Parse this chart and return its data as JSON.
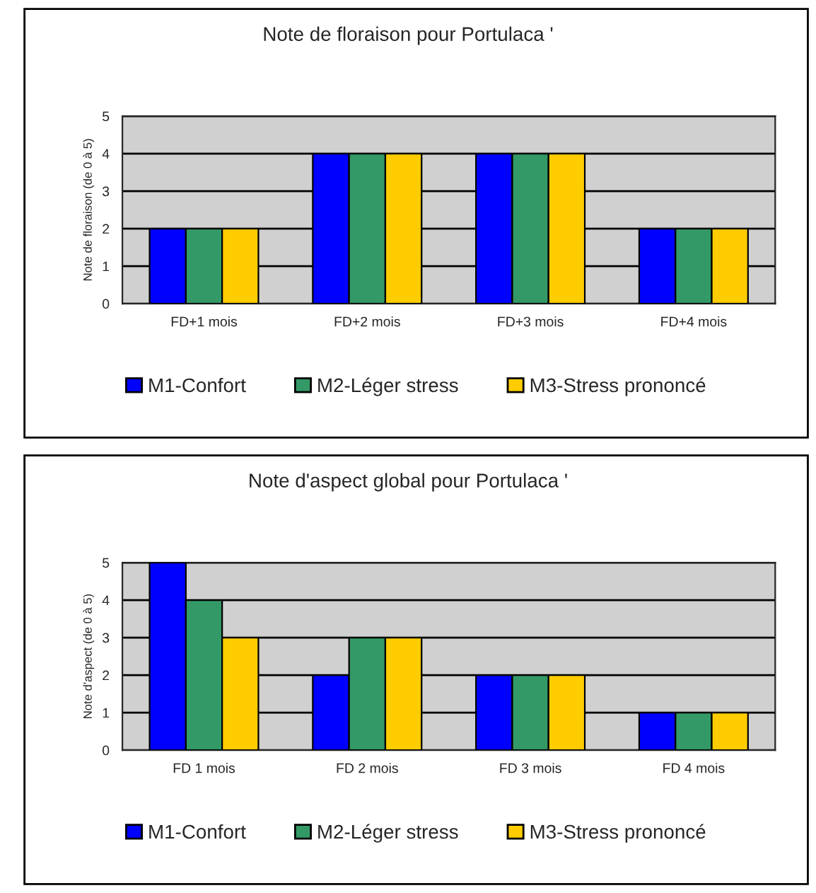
{
  "chart_data": [
    {
      "type": "bar",
      "title": "Note de floraison pour Portulaca '",
      "ylabel": "Note de floraison (de 0 à 5)",
      "categories": [
        "FD+1 mois",
        "FD+2 mois",
        "FD+3 mois",
        "FD+4 mois"
      ],
      "series": [
        {
          "name": "M1-Confort",
          "color": "#0000ff",
          "values": [
            2,
            4,
            4,
            2
          ]
        },
        {
          "name": "M2-Léger stress",
          "color": "#339966",
          "values": [
            2,
            4,
            4,
            2
          ]
        },
        {
          "name": "M3-Stress prononcé",
          "color": "#ffcc00",
          "values": [
            2,
            4,
            4,
            2
          ]
        }
      ],
      "ylim": [
        0,
        5
      ],
      "yticks": [
        0,
        1,
        2,
        3,
        4,
        5
      ],
      "grid": "y",
      "legend": "bottom"
    },
    {
      "type": "bar",
      "title": "Note d'aspect global pour Portulaca '",
      "ylabel": "Note d'aspect (de 0 à 5)",
      "categories": [
        "FD 1 mois",
        "FD 2 mois",
        "FD 3 mois",
        "FD 4 mois"
      ],
      "series": [
        {
          "name": "M1-Confort",
          "color": "#0000ff",
          "values": [
            5,
            2,
            2,
            1
          ]
        },
        {
          "name": "M2-Léger stress",
          "color": "#339966",
          "values": [
            4,
            3,
            2,
            1
          ]
        },
        {
          "name": "M3-Stress prononcé",
          "color": "#ffcc00",
          "values": [
            3,
            3,
            2,
            1
          ]
        }
      ],
      "ylim": [
        0,
        5
      ],
      "yticks": [
        0,
        1,
        2,
        3,
        4,
        5
      ],
      "grid": "y",
      "legend": "bottom"
    }
  ]
}
